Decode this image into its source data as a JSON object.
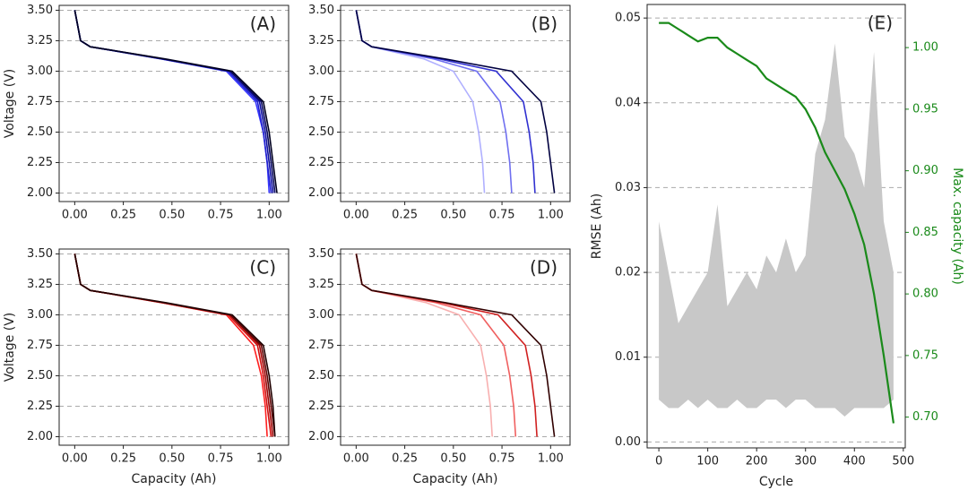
{
  "chart_data": [
    {
      "type": "line",
      "annotation": "(A)",
      "ylabel": "Voltage (V)",
      "xlim": [
        -0.08,
        1.1
      ],
      "ylim": [
        1.93,
        3.54
      ],
      "xticks": [
        {
          "value": 0,
          "label": "0.00"
        },
        {
          "value": 0.25,
          "label": "0.25"
        },
        {
          "value": 0.5,
          "label": "0.50"
        },
        {
          "value": 0.75,
          "label": "0.75"
        },
        {
          "value": 1,
          "label": "1.00"
        }
      ],
      "yticks": [
        {
          "value": 2,
          "label": "2.00"
        },
        {
          "value": 2.25,
          "label": "2.25"
        },
        {
          "value": 2.5,
          "label": "2.50"
        },
        {
          "value": 2.75,
          "label": "2.75"
        },
        {
          "value": 3,
          "label": "3.00"
        },
        {
          "value": 3.25,
          "label": "3.25"
        },
        {
          "value": 3.5,
          "label": "3.50"
        }
      ],
      "grid": true,
      "series": [
        {
          "color": "#3a3aff",
          "x": [
            0,
            0.03,
            0.08,
            0.45,
            0.78,
            0.93,
            0.97,
            0.99,
            1.0
          ],
          "values": [
            3.5,
            3.25,
            3.2,
            3.1,
            3.0,
            2.75,
            2.5,
            2.25,
            2.0
          ]
        },
        {
          "color": "#2020d0",
          "x": [
            0,
            0.03,
            0.08,
            0.45,
            0.79,
            0.94,
            0.97,
            0.99,
            1.01
          ],
          "values": [
            3.5,
            3.25,
            3.2,
            3.1,
            3.0,
            2.75,
            2.5,
            2.25,
            2.0
          ]
        },
        {
          "color": "#1010a0",
          "x": [
            0,
            0.03,
            0.08,
            0.46,
            0.8,
            0.95,
            0.98,
            1.0,
            1.02
          ],
          "values": [
            3.5,
            3.25,
            3.2,
            3.1,
            3.0,
            2.75,
            2.5,
            2.25,
            2.0
          ]
        },
        {
          "color": "#080860",
          "x": [
            0,
            0.03,
            0.08,
            0.46,
            0.8,
            0.96,
            0.99,
            1.01,
            1.03
          ],
          "values": [
            3.5,
            3.25,
            3.2,
            3.1,
            3.0,
            2.75,
            2.5,
            2.25,
            2.0
          ]
        },
        {
          "color": "#000020",
          "x": [
            0,
            0.03,
            0.08,
            0.47,
            0.81,
            0.97,
            1.0,
            1.02,
            1.04
          ],
          "values": [
            3.5,
            3.25,
            3.2,
            3.1,
            3.0,
            2.75,
            2.5,
            2.25,
            2.0
          ]
        }
      ]
    },
    {
      "type": "line",
      "annotation": "(B)",
      "xlim": [
        -0.08,
        1.1
      ],
      "ylim": [
        1.93,
        3.54
      ],
      "xticks": [
        {
          "value": 0,
          "label": "0.00"
        },
        {
          "value": 0.25,
          "label": "0.25"
        },
        {
          "value": 0.5,
          "label": "0.50"
        },
        {
          "value": 0.75,
          "label": "0.75"
        },
        {
          "value": 1,
          "label": "1.00"
        }
      ],
      "yticks": [
        {
          "value": 2,
          "label": "2.00"
        },
        {
          "value": 2.25,
          "label": "2.25"
        },
        {
          "value": 2.5,
          "label": "2.50"
        },
        {
          "value": 2.75,
          "label": "2.75"
        },
        {
          "value": 3,
          "label": "3.00"
        },
        {
          "value": 3.25,
          "label": "3.25"
        },
        {
          "value": 3.5,
          "label": "3.50"
        }
      ],
      "grid": true,
      "series": [
        {
          "color": "#b0b0ff",
          "x": [
            0,
            0.03,
            0.08,
            0.35,
            0.5,
            0.6,
            0.63,
            0.65,
            0.66
          ],
          "values": [
            3.5,
            3.25,
            3.2,
            3.1,
            3.0,
            2.75,
            2.5,
            2.25,
            2.0
          ]
        },
        {
          "color": "#7070f0",
          "x": [
            0,
            0.03,
            0.08,
            0.4,
            0.62,
            0.74,
            0.77,
            0.79,
            0.8
          ],
          "values": [
            3.5,
            3.25,
            3.2,
            3.1,
            3.0,
            2.75,
            2.5,
            2.25,
            2.0
          ]
        },
        {
          "color": "#3030d0",
          "x": [
            0,
            0.03,
            0.08,
            0.43,
            0.72,
            0.86,
            0.89,
            0.91,
            0.92
          ],
          "values": [
            3.5,
            3.25,
            3.2,
            3.1,
            3.0,
            2.75,
            2.5,
            2.25,
            2.0
          ]
        },
        {
          "color": "#000040",
          "x": [
            0,
            0.03,
            0.08,
            0.46,
            0.8,
            0.95,
            0.98,
            1.0,
            1.02
          ],
          "values": [
            3.5,
            3.25,
            3.2,
            3.1,
            3.0,
            2.75,
            2.5,
            2.25,
            2.0
          ]
        }
      ]
    },
    {
      "type": "line",
      "annotation": "(C)",
      "xlabel": "Capacity (Ah)",
      "ylabel": "Voltage (V)",
      "xlim": [
        -0.08,
        1.1
      ],
      "ylim": [
        1.93,
        3.54
      ],
      "xticks": [
        {
          "value": 0,
          "label": "0.00"
        },
        {
          "value": 0.25,
          "label": "0.25"
        },
        {
          "value": 0.5,
          "label": "0.50"
        },
        {
          "value": 0.75,
          "label": "0.75"
        },
        {
          "value": 1,
          "label": "1.00"
        }
      ],
      "yticks": [
        {
          "value": 2,
          "label": "2.00"
        },
        {
          "value": 2.25,
          "label": "2.25"
        },
        {
          "value": 2.5,
          "label": "2.50"
        },
        {
          "value": 2.75,
          "label": "2.75"
        },
        {
          "value": 3,
          "label": "3.00"
        },
        {
          "value": 3.25,
          "label": "3.25"
        },
        {
          "value": 3.5,
          "label": "3.50"
        }
      ],
      "grid": true,
      "series": [
        {
          "color": "#ff2020",
          "x": [
            0,
            0.03,
            0.08,
            0.45,
            0.78,
            0.92,
            0.96,
            0.98,
            0.99
          ],
          "values": [
            3.5,
            3.25,
            3.2,
            3.1,
            3.0,
            2.75,
            2.5,
            2.25,
            2.0
          ]
        },
        {
          "color": "#d01010",
          "x": [
            0,
            0.03,
            0.08,
            0.45,
            0.79,
            0.94,
            0.97,
            0.99,
            1.01
          ],
          "values": [
            3.5,
            3.25,
            3.2,
            3.1,
            3.0,
            2.75,
            2.5,
            2.25,
            2.0
          ]
        },
        {
          "color": "#a00808",
          "x": [
            0,
            0.03,
            0.08,
            0.46,
            0.8,
            0.95,
            0.98,
            1.0,
            1.02
          ],
          "values": [
            3.5,
            3.25,
            3.2,
            3.1,
            3.0,
            2.75,
            2.5,
            2.25,
            2.0
          ]
        },
        {
          "color": "#600404",
          "x": [
            0,
            0.03,
            0.08,
            0.46,
            0.8,
            0.96,
            0.99,
            1.01,
            1.03
          ],
          "values": [
            3.5,
            3.25,
            3.2,
            3.1,
            3.0,
            2.75,
            2.5,
            2.25,
            2.0
          ]
        },
        {
          "color": "#200000",
          "x": [
            0,
            0.03,
            0.08,
            0.47,
            0.81,
            0.97,
            1.0,
            1.02,
            1.03
          ],
          "values": [
            3.5,
            3.25,
            3.2,
            3.1,
            3.0,
            2.75,
            2.5,
            2.25,
            2.0
          ]
        }
      ]
    },
    {
      "type": "line",
      "annotation": "(D)",
      "xlabel": "Capacity (Ah)",
      "xlim": [
        -0.08,
        1.1
      ],
      "ylim": [
        1.93,
        3.54
      ],
      "xticks": [
        {
          "value": 0,
          "label": "0.00"
        },
        {
          "value": 0.25,
          "label": "0.25"
        },
        {
          "value": 0.5,
          "label": "0.50"
        },
        {
          "value": 0.75,
          "label": "0.75"
        },
        {
          "value": 1,
          "label": "1.00"
        }
      ],
      "yticks": [
        {
          "value": 2,
          "label": "2.00"
        },
        {
          "value": 2.25,
          "label": "2.25"
        },
        {
          "value": 2.5,
          "label": "2.50"
        },
        {
          "value": 2.75,
          "label": "2.75"
        },
        {
          "value": 3,
          "label": "3.00"
        },
        {
          "value": 3.25,
          "label": "3.25"
        },
        {
          "value": 3.5,
          "label": "3.50"
        }
      ],
      "grid": true,
      "series": [
        {
          "color": "#f8b0b0",
          "x": [
            0,
            0.03,
            0.08,
            0.36,
            0.53,
            0.64,
            0.67,
            0.69,
            0.7
          ],
          "values": [
            3.5,
            3.25,
            3.2,
            3.1,
            3.0,
            2.75,
            2.5,
            2.25,
            2.0
          ]
        },
        {
          "color": "#f06060",
          "x": [
            0,
            0.03,
            0.08,
            0.41,
            0.64,
            0.76,
            0.79,
            0.81,
            0.82
          ],
          "values": [
            3.5,
            3.25,
            3.2,
            3.1,
            3.0,
            2.75,
            2.5,
            2.25,
            2.0
          ]
        },
        {
          "color": "#d02020",
          "x": [
            0,
            0.03,
            0.08,
            0.44,
            0.73,
            0.87,
            0.9,
            0.92,
            0.93
          ],
          "values": [
            3.5,
            3.25,
            3.2,
            3.1,
            3.0,
            2.75,
            2.5,
            2.25,
            2.0
          ]
        },
        {
          "color": "#300000",
          "x": [
            0,
            0.03,
            0.08,
            0.46,
            0.8,
            0.95,
            0.98,
            1.0,
            1.02
          ],
          "values": [
            3.5,
            3.25,
            3.2,
            3.1,
            3.0,
            2.75,
            2.5,
            2.25,
            2.0
          ]
        }
      ]
    },
    {
      "type": "combo",
      "annotation": "(E)",
      "xlabel": "Cycle",
      "ylabel": "RMSE (Ah)",
      "y2label": "Max. capacity (Ah)",
      "y2color": "#1a8a1a",
      "xlim": [
        -24,
        504
      ],
      "ylim": [
        -0.0007,
        0.0516
      ],
      "y2lim": [
        0.675,
        1.035
      ],
      "xticks": [
        0,
        100,
        200,
        300,
        400,
        500
      ],
      "yticks": [
        {
          "value": 0,
          "label": "0.00"
        },
        0.01,
        {
          "value": 0.02,
          "label": "0.02"
        },
        {
          "value": 0.03,
          "label": "0.03"
        },
        {
          "value": 0.04,
          "label": "0.04"
        },
        0.05
      ],
      "y2ticks": [
        {
          "value": 0.7,
          "label": "0.70"
        },
        0.75,
        {
          "value": 0.8,
          "label": "0.80"
        },
        0.85,
        {
          "value": 0.9,
          "label": "0.90"
        },
        0.95,
        {
          "value": 1,
          "label": "1.00"
        }
      ],
      "grid": true,
      "x": [
        0,
        20,
        40,
        60,
        80,
        100,
        120,
        140,
        160,
        180,
        200,
        220,
        240,
        260,
        280,
        300,
        320,
        340,
        360,
        380,
        400,
        420,
        440,
        460,
        480
      ],
      "series": [
        {
          "type": "area",
          "color": "#c8c8c8",
          "values": [
            0.026,
            0.02,
            0.014,
            0.016,
            0.018,
            0.02,
            0.028,
            0.016,
            0.018,
            0.02,
            0.018,
            0.022,
            0.02,
            0.024,
            0.02,
            0.022,
            0.034,
            0.038,
            0.047,
            0.036,
            0.034,
            0.03,
            0.046,
            0.026,
            0.02
          ],
          "lower": [
            0.005,
            0.004,
            0.004,
            0.005,
            0.004,
            0.005,
            0.004,
            0.004,
            0.005,
            0.004,
            0.004,
            0.005,
            0.005,
            0.004,
            0.005,
            0.005,
            0.004,
            0.004,
            0.004,
            0.003,
            0.004,
            0.004,
            0.004,
            0.004,
            0.005
          ]
        },
        {
          "type": "line",
          "axis": "y2",
          "color": "#1a8a1a",
          "values": [
            1.02,
            1.02,
            1.015,
            1.01,
            1.005,
            1.008,
            1.008,
            1.0,
            0.995,
            0.99,
            0.985,
            0.975,
            0.97,
            0.965,
            0.96,
            0.95,
            0.935,
            0.915,
            0.9,
            0.885,
            0.865,
            0.84,
            0.8,
            0.75,
            0.695
          ]
        }
      ]
    }
  ]
}
